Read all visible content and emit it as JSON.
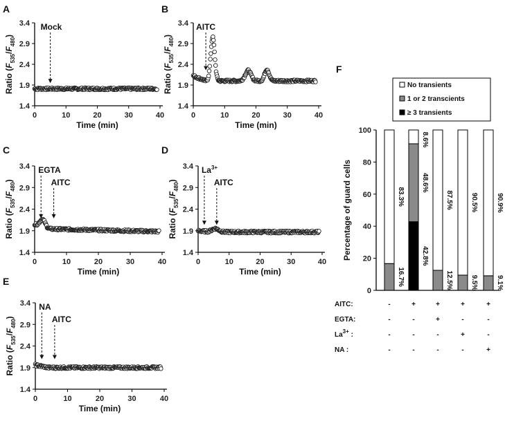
{
  "chart_data": [
    {
      "panel": "A",
      "type": "scatter",
      "xlabel": "Time (min)",
      "ylabel": "Ratio (F535/F480)",
      "ylim": [
        1.4,
        3.4
      ],
      "xlim": [
        0,
        40
      ],
      "yticks": [
        "1.4",
        "1.9",
        "2.4",
        "2.9",
        "3.4"
      ],
      "xticks": [
        "0",
        "10",
        "20",
        "30",
        "40"
      ],
      "annotations": [
        {
          "text": "Mock",
          "time": 5
        }
      ],
      "series": [
        {
          "name": "Ratio",
          "baseline": 1.81,
          "events": []
        }
      ]
    },
    {
      "panel": "B",
      "type": "scatter",
      "xlabel": "Time (min)",
      "ylabel": "Ratio (F535/F480)",
      "ylim": [
        1.4,
        3.4
      ],
      "xlim": [
        0,
        40
      ],
      "yticks": [
        "1.4",
        "1.9",
        "2.4",
        "2.9",
        "3.4"
      ],
      "xticks": [
        "0",
        "10",
        "20",
        "30",
        "40"
      ],
      "annotations": [
        {
          "text": "AITC",
          "time": 4
        }
      ],
      "series": [
        {
          "name": "Ratio",
          "baseline": 2.0,
          "start": 2.12,
          "events": [
            {
              "time": 6.2,
              "peak": 3.05,
              "width": 0.9
            },
            {
              "time": 17.5,
              "peak": 2.25,
              "width": 1.3
            },
            {
              "time": 23.5,
              "peak": 2.28,
              "width": 1.0
            }
          ]
        }
      ]
    },
    {
      "panel": "C",
      "type": "scatter",
      "xlabel": "Time (min)",
      "ylabel": "Ratio (F535/F480)",
      "ylim": [
        1.4,
        3.4
      ],
      "xlim": [
        0,
        40
      ],
      "yticks": [
        "1.4",
        "1.9",
        "2.4",
        "2.9",
        "3.4"
      ],
      "xticks": [
        "0",
        "10",
        "20",
        "30",
        "40"
      ],
      "annotations": [
        {
          "text": "EGTA",
          "time": 2
        },
        {
          "text": "AITC",
          "time": 6
        }
      ],
      "series": [
        {
          "name": "Ratio",
          "baseline": 1.95,
          "start": 2.05,
          "drift_end": 1.88,
          "events": [
            {
              "time": 2.5,
              "peak": 2.13,
              "width": 1.2
            }
          ]
        }
      ]
    },
    {
      "panel": "D",
      "type": "scatter",
      "xlabel": "Time (min)",
      "ylabel": "Ratio (F535/F480)",
      "ylim": [
        1.4,
        3.4
      ],
      "xlim": [
        0,
        40
      ],
      "yticks": [
        "1.4",
        "1.9",
        "2.4",
        "2.9",
        "3.4"
      ],
      "xticks": [
        "0",
        "10",
        "20",
        "30",
        "40"
      ],
      "annotations": [
        {
          "text": "La3+",
          "time": 2
        },
        {
          "text": "AITC",
          "time": 6
        }
      ],
      "series": [
        {
          "name": "Ratio",
          "baseline": 1.87,
          "start": 1.9,
          "events": [
            {
              "time": 5.5,
              "peak": 1.95,
              "width": 1.6
            }
          ]
        }
      ]
    },
    {
      "panel": "E",
      "type": "scatter",
      "xlabel": "Time (min)",
      "ylabel": "Ratio (F535/F480)",
      "ylim": [
        1.4,
        3.4
      ],
      "xlim": [
        0,
        40
      ],
      "yticks": [
        "1.4",
        "1.9",
        "2.4",
        "2.9",
        "3.4"
      ],
      "xticks": [
        "0",
        "10",
        "20",
        "30",
        "40"
      ],
      "annotations": [
        {
          "text": "NA",
          "time": 2
        },
        {
          "text": "AITC",
          "time": 6
        }
      ],
      "series": [
        {
          "name": "Ratio",
          "baseline": 1.9,
          "start": 1.96,
          "events": []
        }
      ]
    },
    {
      "panel": "F",
      "type": "bar",
      "stacked": true,
      "ylabel": "Percentage of guard cells",
      "ylim": [
        0,
        100
      ],
      "yticks": [
        "0",
        "20",
        "40",
        "60",
        "80",
        "100"
      ],
      "legend": [
        "No transients",
        "1 or 2 transcients",
        "≥ 3 transients"
      ],
      "colors": {
        "none": "#ffffff",
        "one_two": "#8a8a8a",
        "three": "#000000"
      },
      "series": [
        {
          "name": "≥ 3 transients",
          "values": [
            0,
            42.8,
            0,
            0,
            0
          ]
        },
        {
          "name": "1 or 2 transcients",
          "values": [
            16.7,
            48.6,
            12.5,
            9.5,
            9.1
          ]
        },
        {
          "name": "No transients",
          "values": [
            83.3,
            8.6,
            87.5,
            90.5,
            90.9
          ]
        }
      ],
      "labels": {
        "none": [
          "83.3%",
          "8.6%",
          "87.5%",
          "90.5%",
          "90.9%"
        ],
        "one_two": [
          "16.7%",
          "48.6%",
          "12.5%",
          "9.5%",
          "9.1%"
        ],
        "three": [
          "",
          "42.8%",
          "",
          "",
          ""
        ]
      },
      "conditions": [
        {
          "label": "AITC:",
          "values": [
            "-",
            "+",
            "+",
            "+",
            "+"
          ]
        },
        {
          "label": "EGTA:",
          "values": [
            "-",
            "-",
            "+",
            "-",
            "-"
          ]
        },
        {
          "label": "La3+ :",
          "values": [
            "-",
            "-",
            "-",
            "+",
            "-"
          ]
        },
        {
          "label": "NA   :",
          "values": [
            "-",
            "-",
            "-",
            "-",
            "+"
          ]
        }
      ]
    }
  ]
}
